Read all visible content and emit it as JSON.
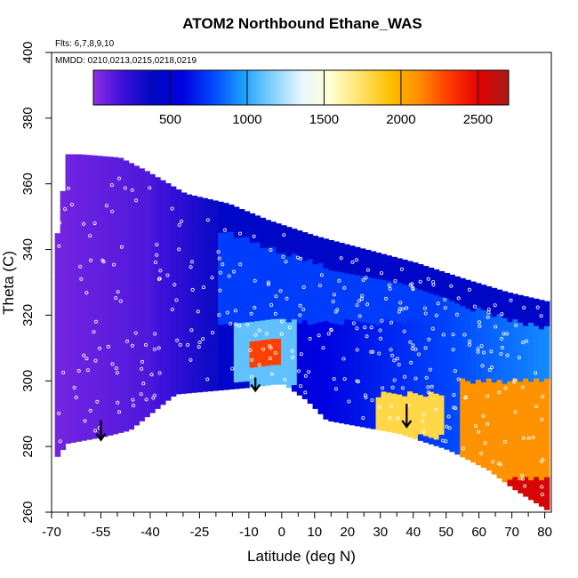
{
  "chart_data": {
    "type": "heatmap",
    "title": "ATOM2 Northbound Ethane_WAS",
    "annotations": {
      "flights": "Flts: 6,7,8,9,10",
      "dates": "MMDD: 0210,0213,0215,0218,0219"
    },
    "xlabel": "Latitude (deg N)",
    "ylabel": "Theta (C)",
    "xlim": [
      -70,
      82
    ],
    "ylim": [
      260,
      400
    ],
    "x_ticks_major": [
      -70,
      -55,
      -40,
      -25,
      -10,
      0,
      10,
      20,
      30,
      40,
      50,
      60,
      70,
      80
    ],
    "x_ticks_minor": [
      -65,
      -60,
      -50,
      -45,
      -35,
      -30,
      -20,
      -15,
      -5,
      5,
      15,
      25,
      35,
      45,
      55,
      65,
      75
    ],
    "y_ticks": [
      260,
      280,
      300,
      320,
      340,
      360,
      380,
      400
    ],
    "colorbar": {
      "min": 0,
      "max": 2700,
      "ticks": [
        500,
        1000,
        1500,
        2000,
        2500
      ],
      "colors": [
        "#8f2fe5",
        "#3b10d9",
        "#0009c2",
        "#0000e0",
        "#0044ff",
        "#199cff",
        "#7fd0ff",
        "#e6f6ff",
        "#ffffd2",
        "#ffe36a",
        "#ffc000",
        "#ff8c00",
        "#ff3a00",
        "#e40000",
        "#a51a1a"
      ]
    },
    "lower_boundary": [
      [
        -69,
        277
      ],
      [
        -66,
        281
      ],
      [
        -55,
        283
      ],
      [
        -47,
        285
      ],
      [
        -33,
        296
      ],
      [
        -11,
        298
      ],
      [
        -3,
        299
      ],
      [
        0,
        299
      ],
      [
        7,
        294
      ],
      [
        13,
        288
      ],
      [
        35,
        284
      ],
      [
        50,
        279
      ],
      [
        62,
        273
      ],
      [
        70,
        267
      ],
      [
        78,
        262
      ],
      [
        81,
        260
      ]
    ],
    "upper_boundary": [
      [
        -69,
        345
      ],
      [
        -66,
        369
      ],
      [
        -62,
        369
      ],
      [
        -50,
        368
      ],
      [
        -42,
        364
      ],
      [
        -30,
        357
      ],
      [
        -17,
        354
      ],
      [
        -5,
        349
      ],
      [
        10,
        344
      ],
      [
        25,
        340
      ],
      [
        40,
        336
      ],
      [
        55,
        331
      ],
      [
        68,
        327
      ],
      [
        81,
        324
      ]
    ],
    "field_anomalies": [
      {
        "x": [
          -10,
          0
        ],
        "y": [
          305,
          312
        ],
        "value": 2300
      },
      {
        "x": [
          28,
          50
        ],
        "y": [
          283,
          296
        ],
        "value": 1800
      },
      {
        "x": [
          55,
          81
        ],
        "y": [
          260,
          300
        ],
        "value": 2100
      },
      {
        "x": [
          68,
          81
        ],
        "y": [
          260,
          270
        ],
        "value": 2550
      },
      {
        "x": [
          -15,
          5
        ],
        "y": [
          299,
          318
        ],
        "value": 1100
      },
      {
        "x": [
          -20,
          81
        ],
        "y": [
          318,
          345
        ],
        "value": 750
      }
    ],
    "arrows": [
      {
        "x": -55,
        "y_start": 288,
        "y_end": 282
      },
      {
        "x": -8,
        "y_start": 301,
        "y_end": 297
      },
      {
        "x": 38,
        "y_start": 293,
        "y_end": 286
      }
    ]
  }
}
